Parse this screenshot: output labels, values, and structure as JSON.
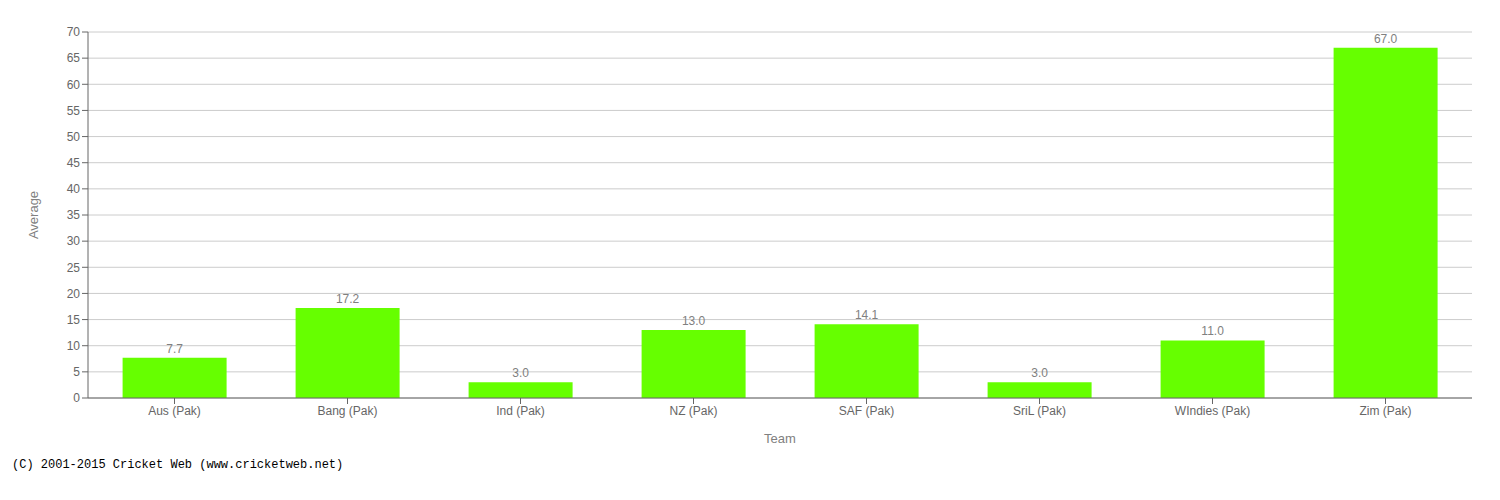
{
  "chart_data": {
    "type": "bar",
    "categories": [
      "Aus (Pak)",
      "Bang (Pak)",
      "Ind (Pak)",
      "NZ (Pak)",
      "SAF (Pak)",
      "SriL (Pak)",
      "WIndies (Pak)",
      "Zim (Pak)"
    ],
    "values": [
      7.7,
      17.2,
      3.0,
      13.0,
      14.1,
      3.0,
      11.0,
      67.0
    ],
    "value_labels": [
      "7.7",
      "17.2",
      "3.0",
      "13.0",
      "14.1",
      "3.0",
      "11.0",
      "67.0"
    ],
    "data_labels": true,
    "color": "#66ff00",
    "xlabel": "Team",
    "ylabel": "Average",
    "ylim": [
      0,
      70
    ],
    "yticks": [
      0,
      5,
      10,
      15,
      20,
      25,
      30,
      35,
      40,
      45,
      50,
      55,
      60,
      65,
      70
    ],
    "grid": true,
    "annotations": [
      "(C) 2001-2015 Cricket Web (www.cricketweb.net)"
    ]
  }
}
